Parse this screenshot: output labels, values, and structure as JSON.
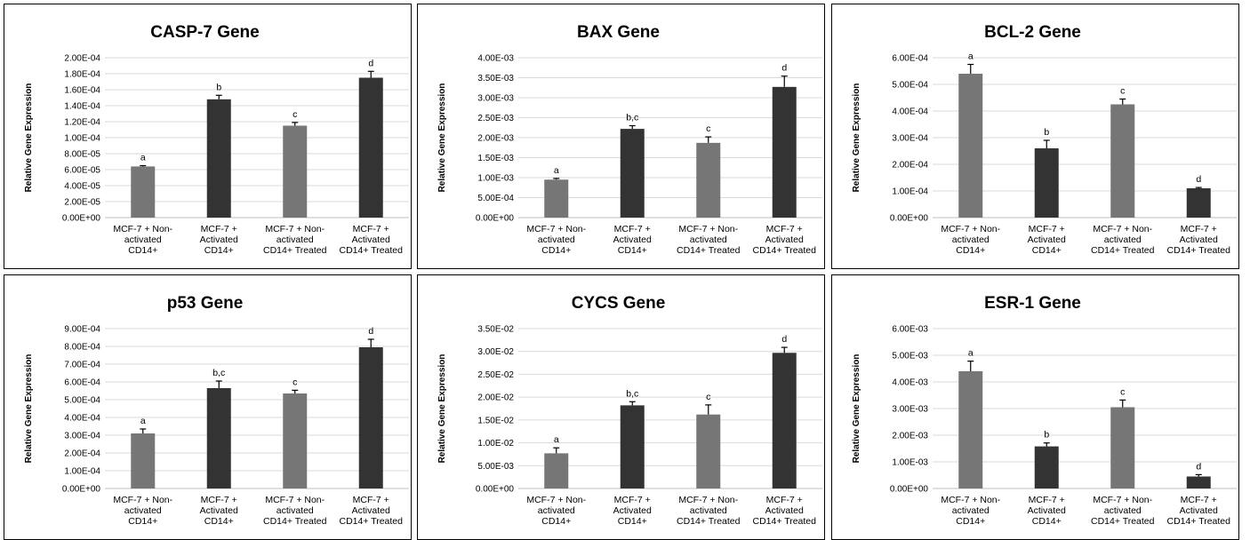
{
  "colors": {
    "light_bar": "#767676",
    "dark_bar": "#333333"
  },
  "chart_data": [
    {
      "type": "bar",
      "title": "CASP-7 Gene",
      "ylabel": "Relative Gene Expression",
      "categories": [
        "MCF-7 + Non-activated CD14+",
        "MCF-7 + Activated CD14+",
        "MCF-7 + Non-activated CD14+ Treated",
        "MCF-7 + Activated CD14+ Treated"
      ],
      "category_lines": [
        [
          "MCF-7 + Non-",
          "activated",
          "CD14+"
        ],
        [
          "MCF-7 +",
          "Activated",
          "CD14+"
        ],
        [
          "MCF-7 + Non-",
          "activated",
          "CD14+ Treated"
        ],
        [
          "MCF-7 +",
          "Activated",
          "CD14+ Treated"
        ]
      ],
      "values": [
        6.4e-05,
        0.000148,
        0.000115,
        0.000175
      ],
      "errors": [
        1e-06,
        5e-06,
        4e-06,
        8e-06
      ],
      "letters": [
        "a",
        "b",
        "c",
        "d"
      ],
      "bar_colors": [
        "light",
        "dark",
        "light",
        "dark"
      ],
      "ylim": [
        0,
        0.0002
      ],
      "yticks": [
        "0.00E+00",
        "2.00E-05",
        "4.00E-05",
        "6.00E-05",
        "8.00E-05",
        "1.00E-04",
        "1.20E-04",
        "1.40E-04",
        "1.60E-04",
        "1.80E-04",
        "2.00E-04"
      ],
      "grid": true
    },
    {
      "type": "bar",
      "title": "BAX Gene",
      "ylabel": "Relative Gene Expression",
      "categories": [
        "MCF-7 + Non-activated CD14+",
        "MCF-7 + Activated CD14+",
        "MCF-7 + Non-activated CD14+ Treated",
        "MCF-7 + Activated CD14+ Treated"
      ],
      "category_lines": [
        [
          "MCF-7 + Non-",
          "activated",
          "CD14+"
        ],
        [
          "MCF-7 +",
          "Activated",
          "CD14+"
        ],
        [
          "MCF-7 + Non-",
          "activated",
          "CD14+ Treated"
        ],
        [
          "MCF-7 +",
          "Activated",
          "CD14+ Treated"
        ]
      ],
      "values": [
        0.00095,
        0.00222,
        0.00187,
        0.00327
      ],
      "errors": [
        3e-05,
        8e-05,
        0.00015,
        0.00027
      ],
      "letters": [
        "a",
        "b,c",
        "c",
        "d"
      ],
      "bar_colors": [
        "light",
        "dark",
        "light",
        "dark"
      ],
      "ylim": [
        0,
        0.004
      ],
      "yticks": [
        "0.00E+00",
        "5.00E-04",
        "1.00E-03",
        "1.50E-03",
        "2.00E-03",
        "2.50E-03",
        "3.00E-03",
        "3.50E-03",
        "4.00E-03"
      ],
      "grid": true
    },
    {
      "type": "bar",
      "title": "BCL-2 Gene",
      "ylabel": "Relative Gene Expression",
      "categories": [
        "MCF-7 + Non-activated CD14+",
        "MCF-7 + Activated CD14+",
        "MCF-7 + Non-activated CD14+ Treated",
        "MCF-7 + Activated CD14+ Treated"
      ],
      "category_lines": [
        [
          "MCF-7 + Non-",
          "activated",
          "CD14+"
        ],
        [
          "MCF-7 +",
          "Activated",
          "CD14+"
        ],
        [
          "MCF-7 + Non-",
          "activated",
          "CD14+ Treated"
        ],
        [
          "MCF-7 +",
          "Activated",
          "CD14+ Treated"
        ]
      ],
      "values": [
        0.00054,
        0.00026,
        0.000425,
        0.00011
      ],
      "errors": [
        3.5e-05,
        3e-05,
        2e-05,
        3e-06
      ],
      "letters": [
        "a",
        "b",
        "c",
        "d"
      ],
      "bar_colors": [
        "light",
        "dark",
        "light",
        "dark"
      ],
      "ylim": [
        0,
        0.0006
      ],
      "yticks": [
        "0.00E+00",
        "1.00E-04",
        "2.00E-04",
        "3.00E-04",
        "4.00E-04",
        "5.00E-04",
        "6.00E-04"
      ],
      "grid": true
    },
    {
      "type": "bar",
      "title": "p53 Gene",
      "ylabel": "Relative Gene Expression",
      "categories": [
        "MCF-7 + Non-activated CD14+",
        "MCF-7 + Activated CD14+",
        "MCF-7 + Non-activated CD14+ Treated",
        "MCF-7 + Activated CD14+ Treated"
      ],
      "category_lines": [
        [
          "MCF-7 + Non-",
          "activated",
          "CD14+"
        ],
        [
          "MCF-7 +",
          "Activated",
          "CD14+"
        ],
        [
          "MCF-7 + Non-",
          "activated",
          "CD14+ Treated"
        ],
        [
          "MCF-7 +",
          "Activated",
          "CD14+ Treated"
        ]
      ],
      "values": [
        0.00031,
        0.000565,
        0.000535,
        0.000795
      ],
      "errors": [
        2.5e-05,
        4e-05,
        1.8e-05,
        4.5e-05
      ],
      "letters": [
        "a",
        "b,c",
        "c",
        "d"
      ],
      "bar_colors": [
        "light",
        "dark",
        "light",
        "dark"
      ],
      "ylim": [
        0,
        0.0009
      ],
      "yticks": [
        "0.00E+00",
        "1.00E-04",
        "2.00E-04",
        "3.00E-04",
        "4.00E-04",
        "5.00E-04",
        "6.00E-04",
        "7.00E-04",
        "8.00E-04",
        "9.00E-04"
      ],
      "grid": true
    },
    {
      "type": "bar",
      "title": "CYCS Gene",
      "ylabel": "Relative Gene Expression",
      "categories": [
        "MCF-7 + Non-activated CD14+",
        "MCF-7 + Activated CD14+",
        "MCF-7 + Non-activated CD14+ Treated",
        "MCF-7 + Activated CD14+ Treated"
      ],
      "category_lines": [
        [
          "MCF-7 + Non-",
          "activated",
          "CD14+"
        ],
        [
          "MCF-7 +",
          "Activated",
          "CD14+"
        ],
        [
          "MCF-7 + Non-",
          "activated",
          "CD14+ Treated"
        ],
        [
          "MCF-7 +",
          "Activated",
          "CD14+ Treated"
        ]
      ],
      "values": [
        0.0077,
        0.0182,
        0.0162,
        0.0297
      ],
      "errors": [
        0.0012,
        0.0008,
        0.0021,
        0.0012
      ],
      "letters": [
        "a",
        "b,c",
        "c",
        "d"
      ],
      "bar_colors": [
        "light",
        "dark",
        "light",
        "dark"
      ],
      "ylim": [
        0,
        0.035
      ],
      "yticks": [
        "0.00E+00",
        "5.00E-03",
        "1.00E-02",
        "1.50E-02",
        "2.00E-02",
        "2.50E-02",
        "3.00E-02",
        "3.50E-02"
      ],
      "grid": true
    },
    {
      "type": "bar",
      "title": "ESR-1 Gene",
      "ylabel": "Relative Gene Expression",
      "categories": [
        "MCF-7 + Non-activated CD14+",
        "MCF-7 + Activated CD14+",
        "MCF-7 + Non-activated CD14+ Treated",
        "MCF-7 + Activated CD14+ Treated"
      ],
      "category_lines": [
        [
          "MCF-7 + Non-",
          "activated",
          "CD14+"
        ],
        [
          "MCF-7 +",
          "Activated",
          "CD14+"
        ],
        [
          "MCF-7 + Non-",
          "activated",
          "CD14+ Treated"
        ],
        [
          "MCF-7 +",
          "Activated",
          "CD14+ Treated"
        ]
      ],
      "values": [
        0.0044,
        0.00158,
        0.00305,
        0.00045
      ],
      "errors": [
        0.00038,
        0.00013,
        0.00027,
        7e-05
      ],
      "letters": [
        "a",
        "b",
        "c",
        "d"
      ],
      "bar_colors": [
        "light",
        "dark",
        "light",
        "dark"
      ],
      "ylim": [
        0,
        0.006
      ],
      "yticks": [
        "0.00E+00",
        "1.00E-03",
        "2.00E-03",
        "3.00E-03",
        "4.00E-03",
        "5.00E-03",
        "6.00E-03"
      ],
      "grid": true
    }
  ]
}
